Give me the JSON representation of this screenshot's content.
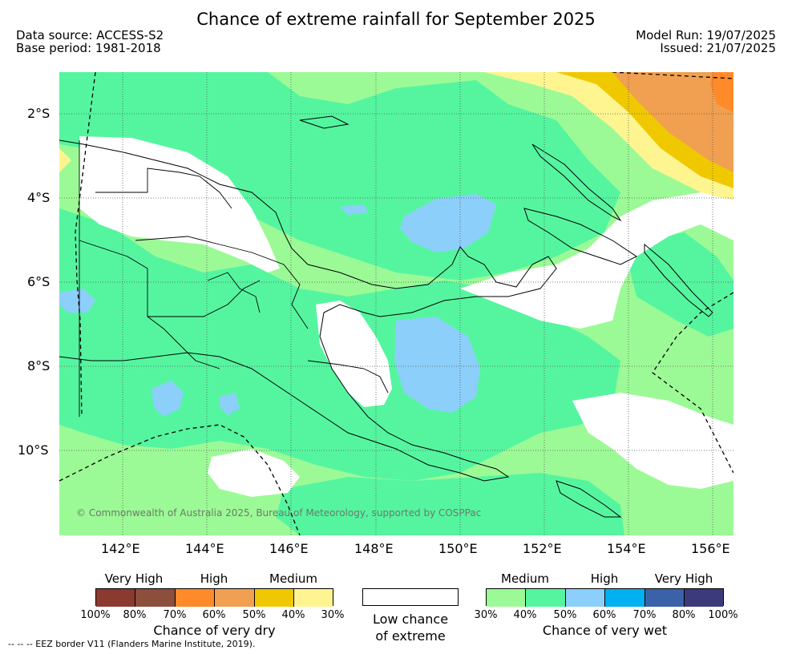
{
  "title": "Chance of extreme rainfall for September 2025",
  "meta": {
    "data_source": "Data source: ACCESS-S2",
    "base_period": "Base period: 1981-2018",
    "model_run": "Model Run: 19/07/2025",
    "issued": "Issued: 21/07/2025"
  },
  "copyright": "© Commonwealth of Australia 2025, Bureau of Meteorology, supported by COSPPac",
  "lat_labels": [
    "2°S",
    "4°S",
    "6°S",
    "8°S",
    "10°S"
  ],
  "lon_labels": [
    "142°E",
    "144°E",
    "146°E",
    "148°E",
    "150°E",
    "152°E",
    "154°E",
    "156°E"
  ],
  "legend": {
    "dry": {
      "categories": [
        "Very High",
        "High",
        "Medium"
      ],
      "colors": [
        "#8b3a2f",
        "#8b4f3c",
        "#ff8a2a",
        "#f0a050",
        "#f0c800",
        "#fff590"
      ],
      "ticks": [
        "100%",
        "80%",
        "70%",
        "60%",
        "50%",
        "40%",
        "30%"
      ],
      "caption": "Chance of very dry"
    },
    "low": {
      "caption_line1": "Low chance",
      "caption_line2": "of extreme"
    },
    "wet": {
      "categories": [
        "Medium",
        "High",
        "Very High"
      ],
      "colors": [
        "#9cfa96",
        "#55f5a0",
        "#8ccffa",
        "#00b0f0",
        "#3a62a8",
        "#3c3a7a"
      ],
      "ticks": [
        "30%",
        "40%",
        "50%",
        "60%",
        "70%",
        "80%",
        "100%"
      ],
      "caption": "Chance of very wet"
    }
  },
  "eez_note": "--  --  -- EEZ border V11 (Flanders Marine Institute, 2019)."
}
